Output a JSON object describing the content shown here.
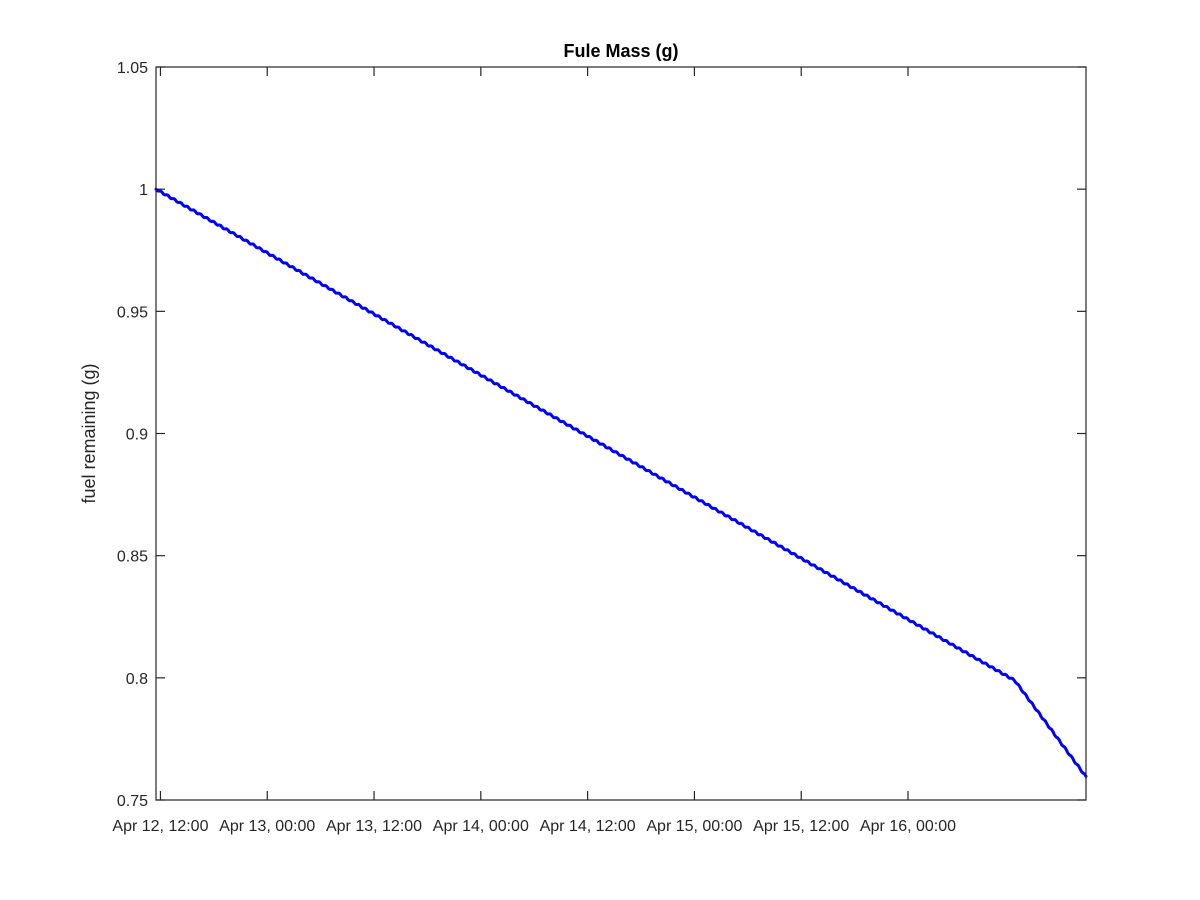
{
  "chart_data": {
    "type": "line",
    "title": "Fule Mass (g)",
    "xlabel": "",
    "ylabel": "fuel remaining (g)",
    "xlim": [
      "2023-04-12T11:30",
      "2023-04-16T20:00"
    ],
    "ylim": [
      0.75,
      1.05
    ],
    "xticks": [
      {
        "value": "2023-04-12T12:00",
        "label": "Apr 12, 12:00"
      },
      {
        "value": "2023-04-13T00:00",
        "label": "Apr 13, 00:00"
      },
      {
        "value": "2023-04-13T12:00",
        "label": "Apr 13, 12:00"
      },
      {
        "value": "2023-04-14T00:00",
        "label": "Apr 14, 00:00"
      },
      {
        "value": "2023-04-14T12:00",
        "label": "Apr 14, 12:00"
      },
      {
        "value": "2023-04-15T00:00",
        "label": "Apr 15, 00:00"
      },
      {
        "value": "2023-04-15T12:00",
        "label": "Apr 15, 12:00"
      },
      {
        "value": "2023-04-16T00:00",
        "label": "Apr 16, 00:00"
      }
    ],
    "yticks": [
      {
        "value": 0.75,
        "label": "0.75"
      },
      {
        "value": 0.8,
        "label": "0.8"
      },
      {
        "value": 0.85,
        "label": "0.85"
      },
      {
        "value": 0.9,
        "label": "0.9"
      },
      {
        "value": 0.95,
        "label": "0.95"
      },
      {
        "value": 1.0,
        "label": "1"
      },
      {
        "value": 1.05,
        "label": "1.05"
      }
    ],
    "grid": false,
    "legend": "none",
    "series": [
      {
        "color": "#0000ff",
        "points": [
          {
            "x": "2023-04-12T11:30",
            "y": 1.0
          },
          {
            "x": "2023-04-13T00:00",
            "y": 0.9739
          },
          {
            "x": "2023-04-13T12:00",
            "y": 0.9489
          },
          {
            "x": "2023-04-14T00:00",
            "y": 0.9239
          },
          {
            "x": "2023-04-14T12:00",
            "y": 0.8989
          },
          {
            "x": "2023-04-15T00:00",
            "y": 0.8739
          },
          {
            "x": "2023-04-15T12:00",
            "y": 0.8489
          },
          {
            "x": "2023-04-16T00:00",
            "y": 0.8239
          },
          {
            "x": "2023-04-16T12:00",
            "y": 0.7989
          },
          {
            "x": "2023-04-16T20:00",
            "y": 0.7595
          }
        ]
      }
    ]
  }
}
